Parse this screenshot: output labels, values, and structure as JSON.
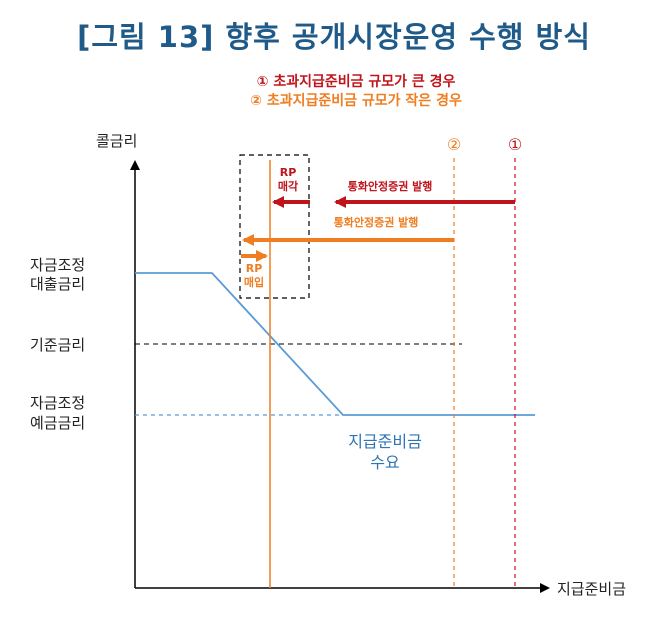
{
  "title": "[그림 13] 향후 공개시장운영 수행 방식",
  "legend": {
    "case1": "① 초과지급준비금 규모가 큰 경우",
    "case2": "② 초과지급준비금 규모가 작은 경우"
  },
  "axes": {
    "y_label": "콜금리",
    "x_label": "지급준비금"
  },
  "rate_labels": {
    "lending_line1": "자금조정",
    "lending_line2": "대출금리",
    "base": "기준금리",
    "deposit_line1": "자금조정",
    "deposit_line2": "예금금리"
  },
  "curve_labels": {
    "line1": "지급준비금",
    "line2": "수요"
  },
  "markers": {
    "case1": "①",
    "case2": "②"
  },
  "arrows": {
    "rp_sell_line1": "RP",
    "rp_sell_line2": "매각",
    "rp_buy_line1": "RP",
    "rp_buy_line2": "매입",
    "msb_issue_case1": "통화안정증권 발행",
    "msb_issue_case2": "통화안정증권 발행"
  },
  "colors": {
    "title": "#1f5a88",
    "case1": "#c0141c",
    "case2": "#ef7d22",
    "demand_curve": "#5b9bd5",
    "axis": "#000000"
  }
}
